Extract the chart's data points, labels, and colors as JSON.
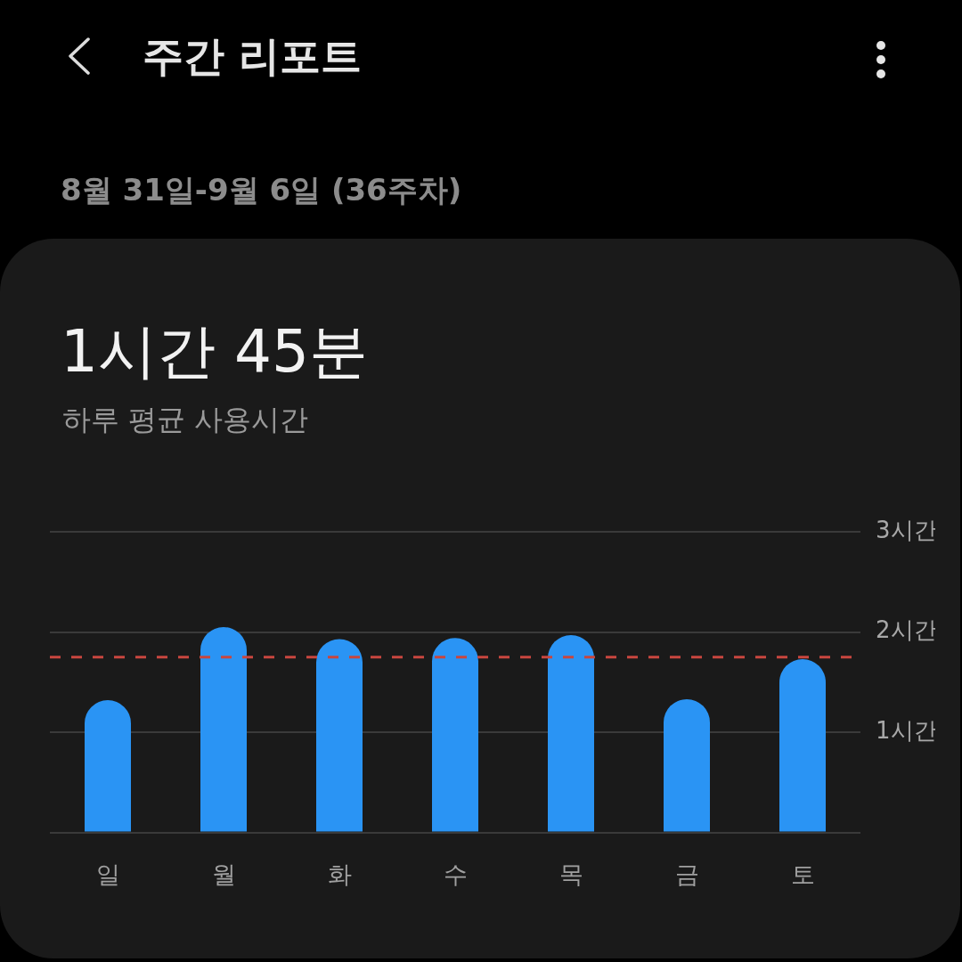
{
  "chart_data": {
    "type": "bar",
    "title": "주간 리포트",
    "subtitle": "8월 31일-9월 6일 (36주차)",
    "annotations": [
      "1시간 45분",
      "하루 평균 사용시간"
    ],
    "categories": [
      "일",
      "월",
      "화",
      "수",
      "목",
      "금",
      "토"
    ],
    "values": [
      1.32,
      2.05,
      1.93,
      1.94,
      1.97,
      1.33,
      1.73
    ],
    "color": "#2a94f4",
    "ylim": [
      0,
      3
    ],
    "yticks": [
      {
        "value": 0,
        "label": null
      },
      {
        "value": 1,
        "label": "1시간"
      },
      {
        "value": 2,
        "label": "2시간"
      },
      {
        "value": 3,
        "label": "3시간"
      }
    ],
    "grid": "y",
    "ref_lines": [
      {
        "axis": "y",
        "value": 1.75,
        "color": "#c8463f",
        "line_style": "dashed"
      }
    ]
  }
}
